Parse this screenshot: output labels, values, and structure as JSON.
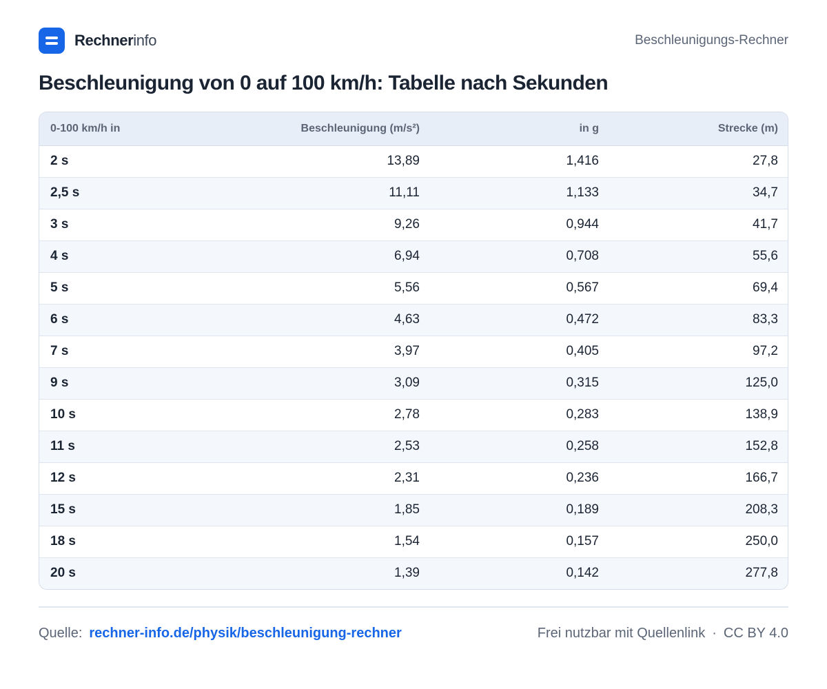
{
  "brand": {
    "name_strong": "Rechner",
    "name_light": "info"
  },
  "header": {
    "page_label": "Beschleunigungs-Rechner"
  },
  "title": "Beschleunigung von 0 auf 100 km/h: Tabelle nach Sekunden",
  "table": {
    "headers": [
      "0-100 km/h in",
      "Beschleunigung (m/s²)",
      "in g",
      "Strecke (m)"
    ],
    "rows": [
      [
        "2 s",
        "13,89",
        "1,416",
        "27,8"
      ],
      [
        "2,5 s",
        "11,11",
        "1,133",
        "34,7"
      ],
      [
        "3 s",
        "9,26",
        "0,944",
        "41,7"
      ],
      [
        "4 s",
        "6,94",
        "0,708",
        "55,6"
      ],
      [
        "5 s",
        "5,56",
        "0,567",
        "69,4"
      ],
      [
        "6 s",
        "4,63",
        "0,472",
        "83,3"
      ],
      [
        "7 s",
        "3,97",
        "0,405",
        "97,2"
      ],
      [
        "9 s",
        "3,09",
        "0,315",
        "125,0"
      ],
      [
        "10 s",
        "2,78",
        "0,283",
        "138,9"
      ],
      [
        "11 s",
        "2,53",
        "0,258",
        "152,8"
      ],
      [
        "12 s",
        "2,31",
        "0,236",
        "166,7"
      ],
      [
        "15 s",
        "1,85",
        "0,189",
        "208,3"
      ],
      [
        "18 s",
        "1,54",
        "0,157",
        "250,0"
      ],
      [
        "20 s",
        "1,39",
        "0,142",
        "277,8"
      ]
    ]
  },
  "footer": {
    "source_label": "Quelle:",
    "source_link": "rechner-info.de/physik/beschleunigung-rechner",
    "license_text": "Frei nutzbar mit Quellenlink",
    "separator": "·",
    "license_name": "CC BY 4.0"
  },
  "colors": {
    "accent": "#1766e8",
    "text": "#1b2433",
    "muted": "#5b6576",
    "header_bg": "#e8eef7",
    "stripe": "#f4f7fb"
  }
}
